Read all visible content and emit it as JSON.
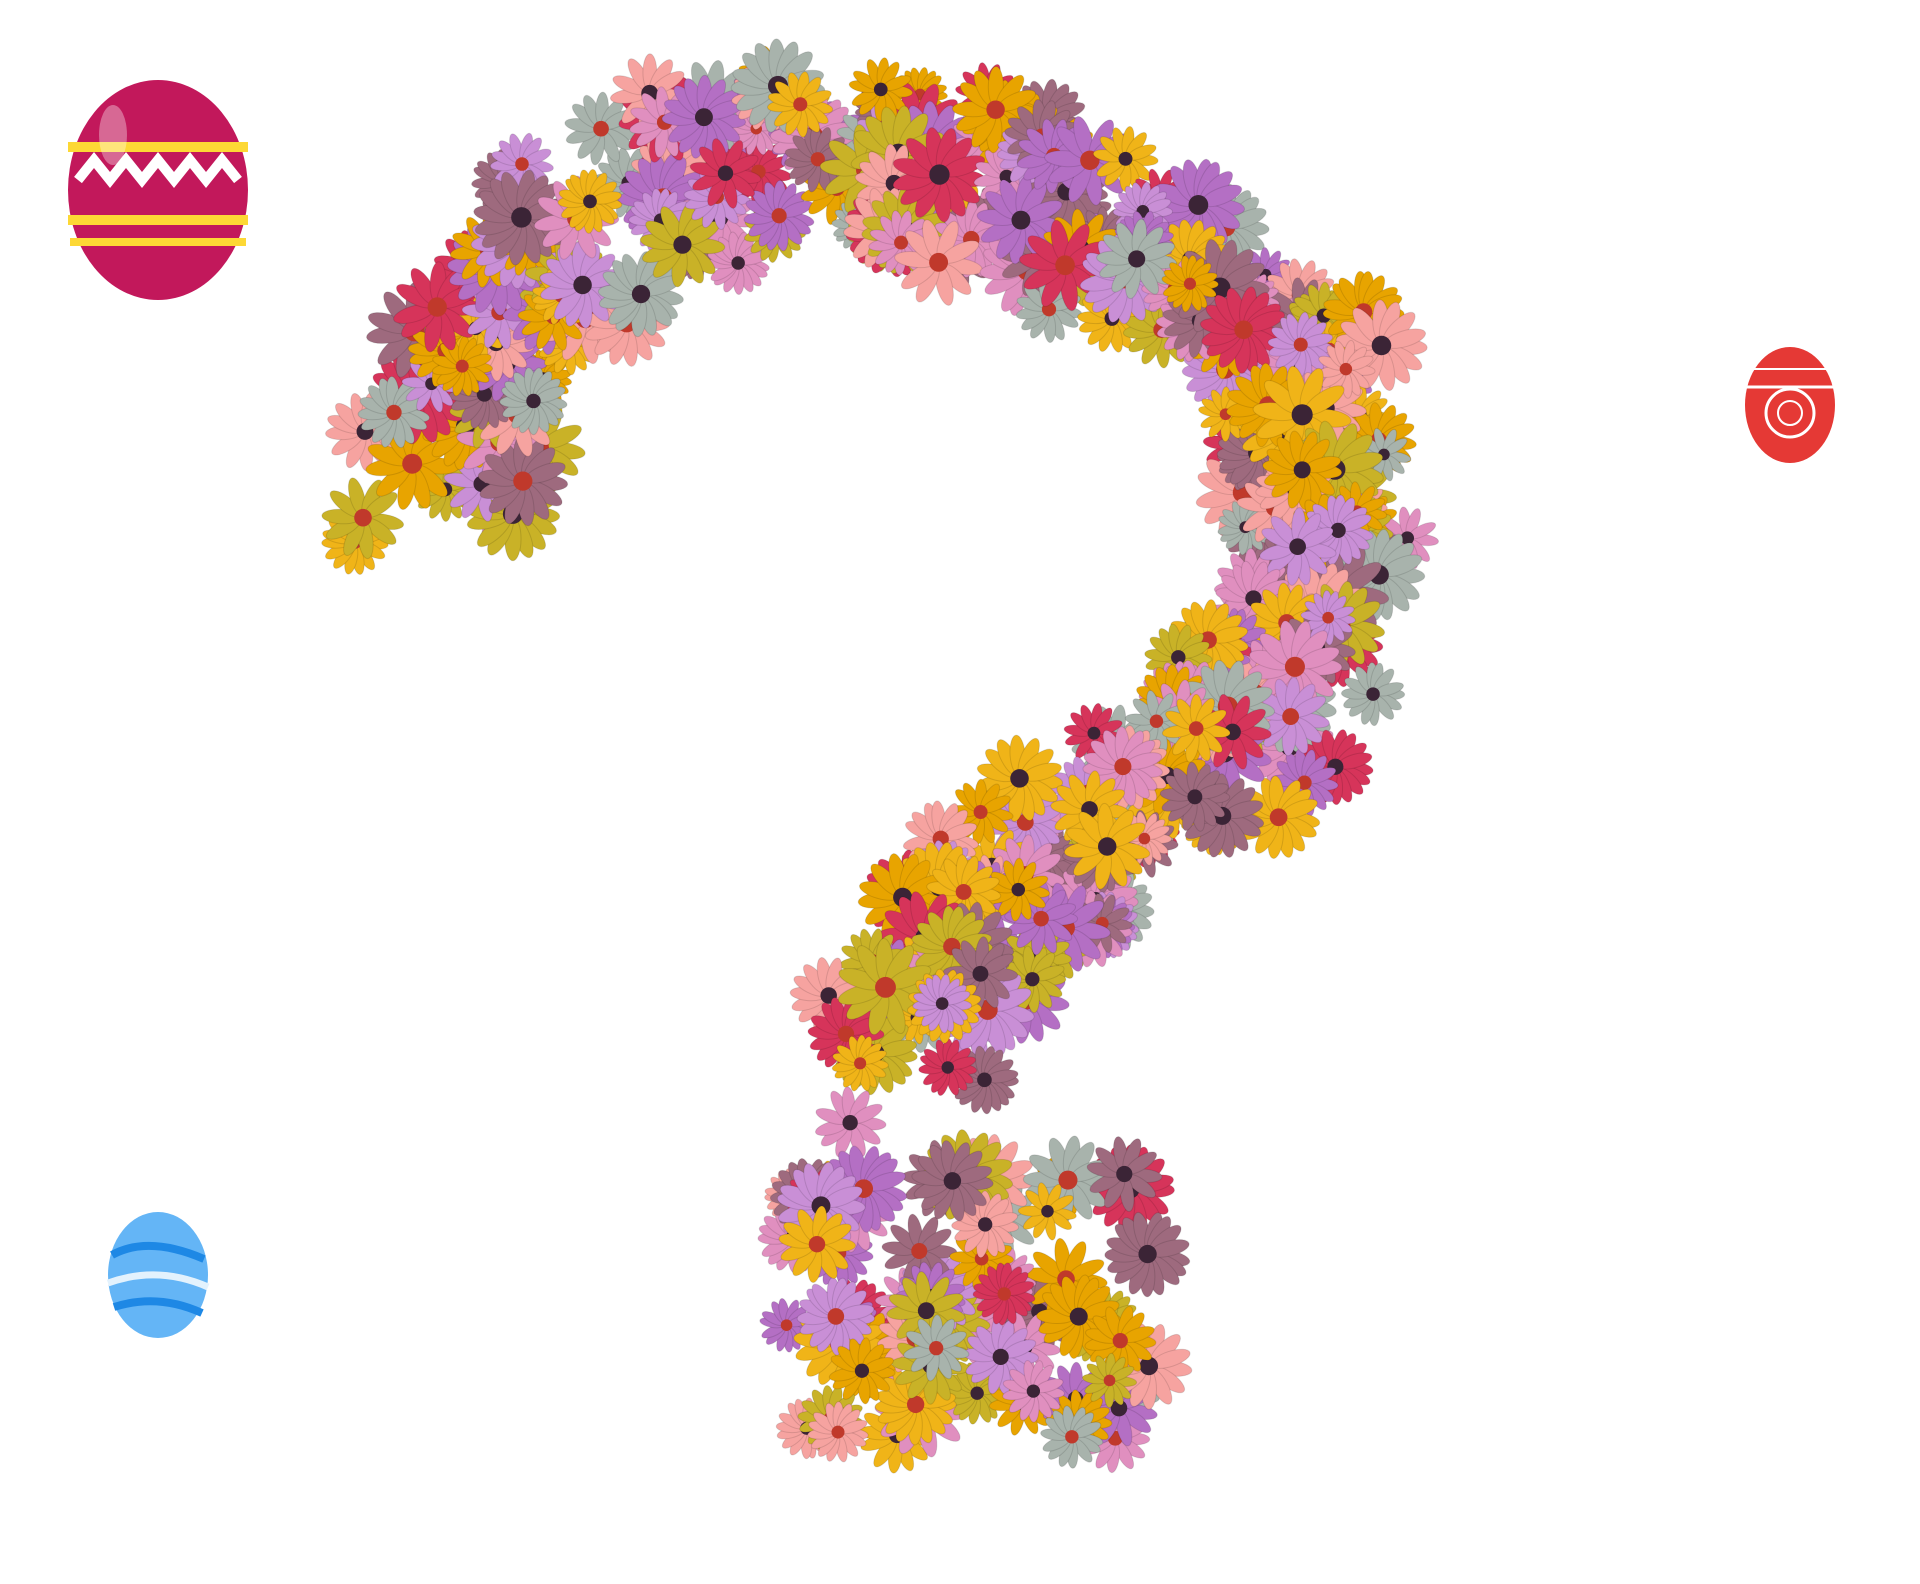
{
  "scene": {
    "background": "#ffffff",
    "subject": "question-mark-of-flowers",
    "flower_palette": [
      "#c98fd6",
      "#b46fc4",
      "#f0b418",
      "#e8a400",
      "#d6345a",
      "#f6a3a0",
      "#9e6a7e",
      "#a8b3ac",
      "#e08fbf",
      "#c9b227"
    ],
    "eggs": [
      {
        "name": "pink-striped-easter-egg",
        "colors": [
          "#c2185b",
          "#fdd835",
          "#ffffff"
        ]
      },
      {
        "name": "red-ornamental-easter-egg",
        "colors": [
          "#e53935",
          "#ffffff"
        ]
      },
      {
        "name": "blue-swirl-easter-egg",
        "colors": [
          "#64b5f6",
          "#1e88e5",
          "#e3f2fd"
        ]
      }
    ]
  }
}
